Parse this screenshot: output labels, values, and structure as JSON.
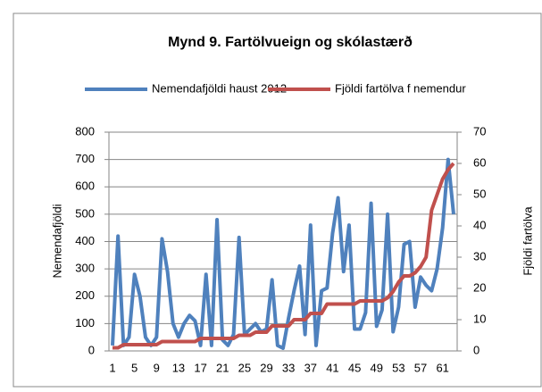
{
  "chart_data": {
    "type": "line",
    "title": "Mynd 9. Fartölvueign  og skólastærð",
    "y_label": "Nemendafjöldi",
    "y2_label": "Fjöldi fartölva",
    "categories": [
      1,
      null,
      null,
      null,
      5,
      null,
      null,
      null,
      9,
      null,
      null,
      null,
      13,
      null,
      null,
      null,
      17,
      null,
      null,
      null,
      21,
      null,
      null,
      null,
      25,
      null,
      null,
      null,
      29,
      null,
      null,
      null,
      33,
      null,
      null,
      null,
      37,
      null,
      null,
      null,
      41,
      null,
      null,
      null,
      45,
      null,
      null,
      null,
      49,
      null,
      null,
      null,
      53,
      null,
      null,
      null,
      57,
      null,
      null,
      null,
      61,
      null,
      null
    ],
    "series": [
      {
        "name": "Nemendafjöldi haust 2012",
        "color": "#4f81bd",
        "axis": "y",
        "values": [
          20,
          420,
          20,
          50,
          280,
          200,
          50,
          20,
          50,
          410,
          290,
          100,
          50,
          100,
          130,
          110,
          20,
          280,
          20,
          480,
          40,
          20,
          60,
          415,
          60,
          80,
          100,
          70,
          80,
          260,
          20,
          10,
          120,
          220,
          310,
          60,
          460,
          20,
          220,
          230,
          430,
          560,
          290,
          460,
          80,
          80,
          140,
          540,
          90,
          150,
          500,
          70,
          160,
          390,
          400,
          160,
          270,
          240,
          220,
          300,
          450,
          700,
          500
        ]
      },
      {
        "name": "Fjöldi fartölva f nemendur",
        "color": "#c0504d",
        "axis": "y2",
        "values": [
          1,
          1,
          2,
          2,
          2,
          2,
          2,
          2,
          2,
          3,
          3,
          3,
          3,
          3,
          3,
          3,
          4,
          4,
          4,
          4,
          4,
          4,
          4,
          5,
          5,
          5,
          6,
          6,
          6,
          8,
          8,
          8,
          8,
          10,
          10,
          10,
          12,
          12,
          12,
          15,
          15,
          15,
          15,
          15,
          15,
          16,
          16,
          16,
          16,
          16,
          17,
          19,
          22,
          24,
          24,
          25,
          27,
          30,
          45,
          50,
          55,
          58,
          60
        ]
      }
    ],
    "ylim": [
      0,
      800
    ],
    "yticks": [
      0,
      100,
      200,
      300,
      400,
      500,
      600,
      700,
      800
    ],
    "y2lim": [
      0,
      70
    ],
    "y2ticks": [
      0,
      10,
      20,
      30,
      40,
      50,
      60,
      70
    ],
    "grid": true,
    "legend": "top"
  }
}
